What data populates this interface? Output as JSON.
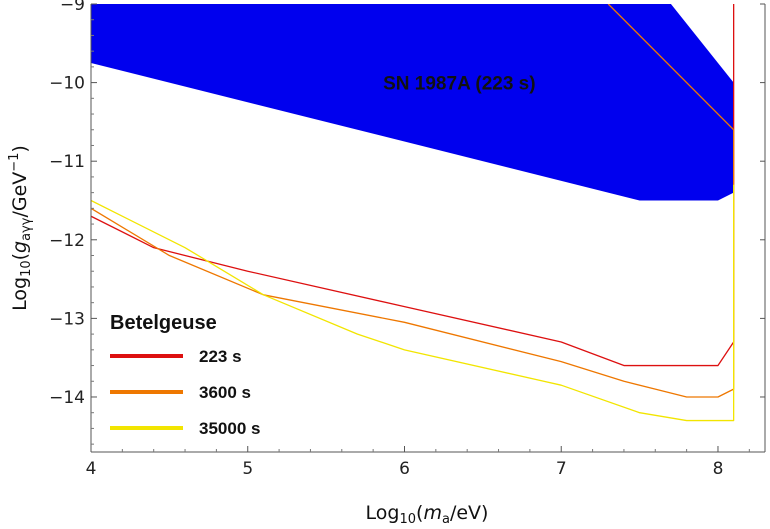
{
  "chart_data": {
    "type": "line",
    "xlabel": {
      "prefix": "Log",
      "sub": "10",
      "open": "(",
      "var": "m",
      "var_sub": "a",
      "rest": "/eV)"
    },
    "ylabel": {
      "prefix": "Log",
      "sub": "10",
      "open": "(",
      "var": "g",
      "var_sub": "aγγ",
      "rest": "/GeV",
      "sup": "−1",
      "close": ")"
    },
    "xlim": [
      4,
      8.3
    ],
    "ylim": [
      -14.7,
      -9
    ],
    "x_ticks": [
      {
        "value": 4,
        "label": "4"
      },
      {
        "value": 5,
        "label": "5"
      },
      {
        "value": 6,
        "label": "6"
      },
      {
        "value": 7,
        "label": "7"
      },
      {
        "value": 8,
        "label": "8"
      }
    ],
    "y_ticks": [
      {
        "value": -9,
        "label": "−9"
      },
      {
        "value": -10,
        "label": "−10"
      },
      {
        "value": -11,
        "label": "−11"
      },
      {
        "value": -12,
        "label": "−12"
      },
      {
        "value": -13,
        "label": "−13"
      },
      {
        "value": -14,
        "label": "−14"
      }
    ],
    "region": {
      "name": "SN 1987A (223 s)",
      "color": "#0000ee",
      "label_at": [
        6.35,
        -10.0
      ],
      "polygon": [
        [
          4,
          -9
        ],
        [
          7.7,
          -9
        ],
        [
          8.1,
          -10.0
        ],
        [
          8.1,
          -11.4
        ],
        [
          8.0,
          -11.5
        ],
        [
          7.5,
          -11.5
        ],
        [
          4,
          -9.75
        ]
      ]
    },
    "legend": {
      "title": "Betelgeuse",
      "placement": "bottom-left"
    },
    "series": [
      {
        "name": "223 s",
        "color": "#dd1010",
        "x": [
          4.0,
          4.4,
          5.0,
          6.0,
          7.0,
          7.4,
          7.6,
          7.8,
          8.0,
          8.1,
          8.1
        ],
        "y": [
          -11.7,
          -12.1,
          -12.4,
          -12.85,
          -13.3,
          -13.6,
          -13.6,
          -13.6,
          -13.6,
          -13.3,
          -9.0
        ]
      },
      {
        "name": "3600 s",
        "color": "#ee7700",
        "x": [
          4.0,
          4.5,
          5.1,
          6.0,
          7.0,
          7.4,
          7.6,
          7.8,
          8.0,
          8.1,
          8.1
        ],
        "y": [
          -11.6,
          -12.2,
          -12.7,
          -13.05,
          -13.55,
          -13.8,
          -13.9,
          -14.0,
          -14.0,
          -13.9,
          -10.6
        ]
      },
      {
        "name": "35000 s",
        "color": "#f2e500",
        "x": [
          4.0,
          4.6,
          5.1,
          5.7,
          6.0,
          7.0,
          7.5,
          7.8,
          8.0,
          8.1,
          8.1
        ],
        "y": [
          -11.5,
          -12.1,
          -12.7,
          -13.2,
          -13.4,
          -13.85,
          -14.2,
          -14.3,
          -14.3,
          -14.3,
          -11.3
        ]
      },
      {
        "name": "",
        "color": "#ee7700",
        "x": [
          7.3,
          8.1
        ],
        "y": [
          -9.0,
          -10.6
        ]
      }
    ]
  }
}
